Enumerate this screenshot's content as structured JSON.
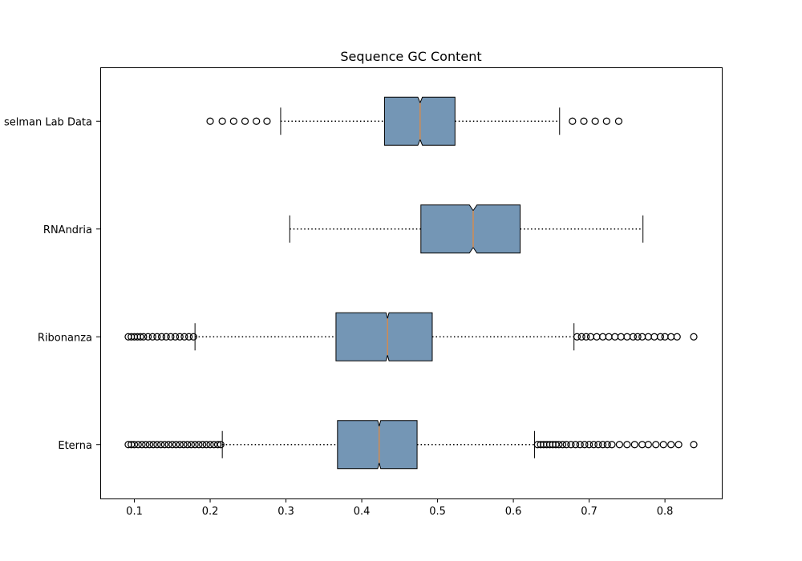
{
  "chart_data": {
    "type": "boxplot",
    "orientation": "horizontal",
    "notched": true,
    "title": "Sequence GC Content",
    "xlabel": "",
    "ylabel": "",
    "xlim": [
      0.055,
      0.875
    ],
    "xticks": [
      0.1,
      0.2,
      0.3,
      0.4,
      0.5,
      0.6,
      0.7,
      0.8
    ],
    "xtick_labels": [
      "0.1",
      "0.2",
      "0.3",
      "0.4",
      "0.5",
      "0.6",
      "0.7",
      "0.8"
    ],
    "grid": false,
    "colors": {
      "box_fill": "#7496b5",
      "median": "#e8883a",
      "outline": "#000000"
    },
    "categories": [
      "Eterna",
      "Ribonanza",
      "RNAndria",
      "Kasselman Lab Data"
    ],
    "category_labels": [
      "Eterna",
      "Ribonanza",
      "RNAndria",
      "selman Lab Data"
    ],
    "boxes": [
      {
        "name": "Eterna",
        "whisker_low": 0.216,
        "q1": 0.368,
        "median": 0.423,
        "q3": 0.473,
        "whisker_high": 0.628,
        "notch_low": 0.421,
        "notch_high": 0.425,
        "outliers": [
          0.092,
          0.096,
          0.1,
          0.105,
          0.11,
          0.115,
          0.12,
          0.125,
          0.13,
          0.135,
          0.14,
          0.145,
          0.15,
          0.155,
          0.16,
          0.165,
          0.17,
          0.175,
          0.18,
          0.185,
          0.19,
          0.195,
          0.2,
          0.205,
          0.21,
          0.214,
          0.632,
          0.636,
          0.64,
          0.644,
          0.648,
          0.652,
          0.656,
          0.66,
          0.665,
          0.67,
          0.676,
          0.682,
          0.688,
          0.694,
          0.7,
          0.706,
          0.712,
          0.718,
          0.724,
          0.73,
          0.74,
          0.75,
          0.76,
          0.77,
          0.778,
          0.788,
          0.798,
          0.808,
          0.818,
          0.838
        ]
      },
      {
        "name": "Ribonanza",
        "whisker_low": 0.18,
        "q1": 0.366,
        "median": 0.434,
        "q3": 0.493,
        "whisker_high": 0.68,
        "notch_low": 0.432,
        "notch_high": 0.436,
        "outliers": [
          0.092,
          0.096,
          0.1,
          0.104,
          0.108,
          0.112,
          0.118,
          0.124,
          0.13,
          0.136,
          0.142,
          0.148,
          0.154,
          0.16,
          0.166,
          0.172,
          0.178,
          0.684,
          0.69,
          0.696,
          0.702,
          0.71,
          0.718,
          0.726,
          0.734,
          0.742,
          0.75,
          0.758,
          0.764,
          0.77,
          0.778,
          0.786,
          0.794,
          0.8,
          0.808,
          0.816,
          0.838
        ]
      },
      {
        "name": "RNAndria",
        "whisker_low": 0.305,
        "q1": 0.478,
        "median": 0.547,
        "q3": 0.609,
        "whisker_high": 0.771,
        "notch_low": 0.542,
        "notch_high": 0.552,
        "outliers": []
      },
      {
        "name": "Kasselman Lab Data",
        "whisker_low": 0.293,
        "q1": 0.43,
        "median": 0.477,
        "q3": 0.523,
        "whisker_high": 0.661,
        "notch_low": 0.474,
        "notch_high": 0.48,
        "outliers": [
          0.2,
          0.216,
          0.231,
          0.246,
          0.261,
          0.275,
          0.678,
          0.693,
          0.708,
          0.723,
          0.739
        ]
      }
    ]
  }
}
